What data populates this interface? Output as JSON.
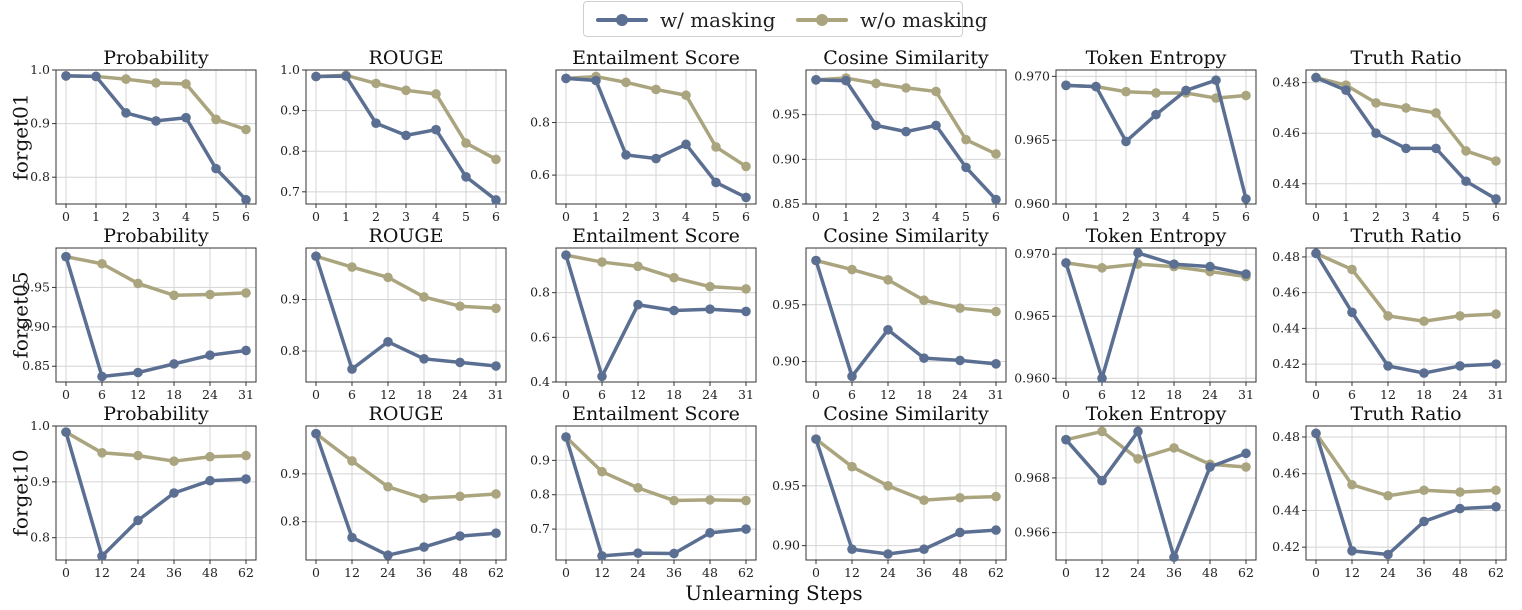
{
  "legend": {
    "masking_label": "w/ masking",
    "no_masking_label": "w/o masking"
  },
  "colors": {
    "w_masking": "#5b6f92",
    "wo_masking": "#aaa57e",
    "grid": "#d4d4d4",
    "axis": "#333333"
  },
  "x_axis_label": "Unlearning Steps",
  "chart_data": [
    {
      "type": "line",
      "row": "forget01",
      "title": "Probability",
      "categories": [
        "0",
        "1",
        "2",
        "3",
        "4",
        "5",
        "6"
      ],
      "ylim": [
        0.75,
        1.0
      ],
      "yticks": [
        0.8,
        0.9,
        1.0
      ],
      "ytick_labels": [
        "0.8",
        "0.9",
        "1.0"
      ],
      "series": [
        {
          "name": "w/ masking",
          "values": [
            0.989,
            0.988,
            0.92,
            0.905,
            0.911,
            0.816,
            0.758
          ]
        },
        {
          "name": "w/o masking",
          "values": [
            0.989,
            0.988,
            0.983,
            0.976,
            0.974,
            0.908,
            0.889
          ]
        }
      ]
    },
    {
      "type": "line",
      "row": "forget01",
      "title": "ROUGE",
      "categories": [
        "0",
        "1",
        "2",
        "3",
        "4",
        "5",
        "6"
      ],
      "ylim": [
        0.67,
        1.0
      ],
      "yticks": [
        0.7,
        0.8,
        0.9,
        1.0
      ],
      "ytick_labels": [
        "0.7",
        "0.8",
        "0.9",
        "1.0"
      ],
      "series": [
        {
          "name": "w/ masking",
          "values": [
            0.984,
            0.985,
            0.869,
            0.839,
            0.853,
            0.737,
            0.68
          ]
        },
        {
          "name": "w/o masking",
          "values": [
            0.984,
            0.987,
            0.967,
            0.95,
            0.941,
            0.82,
            0.78
          ]
        }
      ]
    },
    {
      "type": "line",
      "row": "forget01",
      "title": "Entailment Score",
      "categories": [
        "0",
        "1",
        "2",
        "3",
        "4",
        "5",
        "6"
      ],
      "ylim": [
        0.49,
        1.0
      ],
      "yticks": [
        0.6,
        0.8
      ],
      "ytick_labels": [
        "0.6",
        "0.8"
      ],
      "series": [
        {
          "name": "w/ masking",
          "values": [
            0.968,
            0.96,
            0.677,
            0.663,
            0.717,
            0.572,
            0.515
          ]
        },
        {
          "name": "w/o masking",
          "values": [
            0.968,
            0.975,
            0.953,
            0.926,
            0.904,
            0.707,
            0.633
          ]
        }
      ]
    },
    {
      "type": "line",
      "row": "forget01",
      "title": "Cosine Similarity",
      "categories": [
        "0",
        "1",
        "2",
        "3",
        "4",
        "5",
        "6"
      ],
      "ylim": [
        0.85,
        1.0
      ],
      "yticks": [
        0.85,
        0.9,
        0.95
      ],
      "ytick_labels": [
        "0.85",
        "0.90",
        "0.95"
      ],
      "series": [
        {
          "name": "w/ masking",
          "values": [
            0.989,
            0.988,
            0.938,
            0.931,
            0.938,
            0.891,
            0.855
          ]
        },
        {
          "name": "w/o masking",
          "values": [
            0.989,
            0.991,
            0.985,
            0.98,
            0.976,
            0.922,
            0.906
          ]
        }
      ]
    },
    {
      "type": "line",
      "row": "forget01",
      "title": "Token Entropy",
      "categories": [
        "0",
        "1",
        "2",
        "3",
        "4",
        "5",
        "6"
      ],
      "ylim": [
        0.96,
        0.9705
      ],
      "yticks": [
        0.96,
        0.965,
        0.97
      ],
      "ytick_labels": [
        "0.960",
        "0.965",
        "0.970"
      ],
      "series": [
        {
          "name": "w/ masking",
          "values": [
            0.9693,
            0.9692,
            0.9649,
            0.967,
            0.9689,
            0.9697,
            0.9604
          ]
        },
        {
          "name": "w/o masking",
          "values": [
            0.9693,
            0.9692,
            0.9688,
            0.9687,
            0.9687,
            0.9683,
            0.9685
          ]
        }
      ]
    },
    {
      "type": "line",
      "row": "forget01",
      "title": "Truth Ratio",
      "categories": [
        "0",
        "1",
        "2",
        "3",
        "4",
        "5",
        "6"
      ],
      "ylim": [
        0.432,
        0.485
      ],
      "yticks": [
        0.44,
        0.46,
        0.48
      ],
      "ytick_labels": [
        "0.44",
        "0.46",
        "0.48"
      ],
      "series": [
        {
          "name": "w/ masking",
          "values": [
            0.482,
            0.477,
            0.46,
            0.454,
            0.454,
            0.441,
            0.434
          ]
        },
        {
          "name": "w/o masking",
          "values": [
            0.482,
            0.479,
            0.472,
            0.47,
            0.468,
            0.453,
            0.449
          ]
        }
      ]
    },
    {
      "type": "line",
      "row": "forget05",
      "title": "Probability",
      "categories": [
        "0",
        "6",
        "12",
        "18",
        "24",
        "31"
      ],
      "ylim": [
        0.83,
        1.0
      ],
      "yticks": [
        0.85,
        0.9,
        0.95
      ],
      "ytick_labels": [
        "0.85",
        "0.90",
        "0.95"
      ],
      "series": [
        {
          "name": "w/ masking",
          "values": [
            0.989,
            0.837,
            0.842,
            0.853,
            0.864,
            0.87
          ]
        },
        {
          "name": "w/o masking",
          "values": [
            0.989,
            0.98,
            0.955,
            0.94,
            0.941,
            0.943
          ]
        }
      ]
    },
    {
      "type": "line",
      "row": "forget05",
      "title": "ROUGE",
      "categories": [
        "0",
        "6",
        "12",
        "18",
        "24",
        "31"
      ],
      "ylim": [
        0.74,
        1.0
      ],
      "yticks": [
        0.8,
        0.9
      ],
      "ytick_labels": [
        "0.8",
        "0.9"
      ],
      "series": [
        {
          "name": "w/ masking",
          "values": [
            0.984,
            0.765,
            0.818,
            0.785,
            0.778,
            0.771
          ]
        },
        {
          "name": "w/o masking",
          "values": [
            0.984,
            0.963,
            0.943,
            0.905,
            0.887,
            0.883
          ]
        }
      ]
    },
    {
      "type": "line",
      "row": "forget05",
      "title": "Entailment Score",
      "categories": [
        "0",
        "6",
        "12",
        "18",
        "24",
        "31"
      ],
      "ylim": [
        0.4,
        1.0
      ],
      "yticks": [
        0.4,
        0.6,
        0.8
      ],
      "ytick_labels": [
        "0.4",
        "0.6",
        "0.8"
      ],
      "series": [
        {
          "name": "w/ masking",
          "values": [
            0.968,
            0.425,
            0.746,
            0.72,
            0.726,
            0.716
          ]
        },
        {
          "name": "w/o masking",
          "values": [
            0.968,
            0.937,
            0.918,
            0.867,
            0.827,
            0.817
          ]
        }
      ]
    },
    {
      "type": "line",
      "row": "forget05",
      "title": "Cosine Similarity",
      "categories": [
        "0",
        "6",
        "12",
        "18",
        "24",
        "31"
      ],
      "ylim": [
        0.882,
        1.0
      ],
      "yticks": [
        0.9,
        0.95
      ],
      "ytick_labels": [
        "0.90",
        "0.95"
      ],
      "series": [
        {
          "name": "w/ masking",
          "values": [
            0.989,
            0.887,
            0.928,
            0.903,
            0.901,
            0.898
          ]
        },
        {
          "name": "w/o masking",
          "values": [
            0.989,
            0.981,
            0.972,
            0.954,
            0.947,
            0.944
          ]
        }
      ]
    },
    {
      "type": "line",
      "row": "forget05",
      "title": "Token Entropy",
      "categories": [
        "0",
        "6",
        "12",
        "18",
        "24",
        "31"
      ],
      "ylim": [
        0.9597,
        0.9705
      ],
      "yticks": [
        0.96,
        0.965,
        0.97
      ],
      "ytick_labels": [
        "0.960",
        "0.965",
        "0.970"
      ],
      "series": [
        {
          "name": "w/ masking",
          "values": [
            0.9693,
            0.96,
            0.9701,
            0.9692,
            0.969,
            0.9684
          ]
        },
        {
          "name": "w/o masking",
          "values": [
            0.9693,
            0.9689,
            0.9692,
            0.969,
            0.9686,
            0.9682
          ]
        }
      ]
    },
    {
      "type": "line",
      "row": "forget05",
      "title": "Truth Ratio",
      "categories": [
        "0",
        "6",
        "12",
        "18",
        "24",
        "31"
      ],
      "ylim": [
        0.41,
        0.485
      ],
      "yticks": [
        0.42,
        0.44,
        0.46,
        0.48
      ],
      "ytick_labels": [
        "0.42",
        "0.44",
        "0.46",
        "0.48"
      ],
      "series": [
        {
          "name": "w/ masking",
          "values": [
            0.482,
            0.449,
            0.419,
            0.415,
            0.419,
            0.42
          ]
        },
        {
          "name": "w/o masking",
          "values": [
            0.482,
            0.473,
            0.447,
            0.444,
            0.447,
            0.448
          ]
        }
      ]
    },
    {
      "type": "line",
      "row": "forget10",
      "title": "Probability",
      "categories": [
        "0",
        "12",
        "24",
        "36",
        "48",
        "62"
      ],
      "ylim": [
        0.76,
        1.0
      ],
      "yticks": [
        0.8,
        0.9,
        1.0
      ],
      "ytick_labels": [
        "0.8",
        "0.9",
        "1.0"
      ],
      "series": [
        {
          "name": "w/ masking",
          "values": [
            0.989,
            0.767,
            0.831,
            0.88,
            0.902,
            0.905
          ]
        },
        {
          "name": "w/o masking",
          "values": [
            0.989,
            0.952,
            0.947,
            0.937,
            0.945,
            0.947
          ]
        }
      ]
    },
    {
      "type": "line",
      "row": "forget10",
      "title": "ROUGE",
      "categories": [
        "0",
        "12",
        "24",
        "36",
        "48",
        "62"
      ],
      "ylim": [
        0.72,
        1.0
      ],
      "yticks": [
        0.8,
        0.9
      ],
      "ytick_labels": [
        "0.8",
        "0.9"
      ],
      "series": [
        {
          "name": "w/ masking",
          "values": [
            0.984,
            0.767,
            0.73,
            0.747,
            0.77,
            0.776
          ]
        },
        {
          "name": "w/o masking",
          "values": [
            0.984,
            0.927,
            0.873,
            0.849,
            0.853,
            0.858
          ]
        }
      ]
    },
    {
      "type": "line",
      "row": "forget10",
      "title": "Entailment Score",
      "categories": [
        "0",
        "12",
        "24",
        "36",
        "48",
        "62"
      ],
      "ylim": [
        0.61,
        1.0
      ],
      "yticks": [
        0.7,
        0.8,
        0.9
      ],
      "ytick_labels": [
        "0.7",
        "0.8",
        "0.9"
      ],
      "series": [
        {
          "name": "w/ masking",
          "values": [
            0.968,
            0.622,
            0.63,
            0.629,
            0.689,
            0.7
          ]
        },
        {
          "name": "w/o masking",
          "values": [
            0.968,
            0.867,
            0.82,
            0.783,
            0.785,
            0.783
          ]
        }
      ]
    },
    {
      "type": "line",
      "row": "forget10",
      "title": "Cosine Similarity",
      "categories": [
        "0",
        "12",
        "24",
        "36",
        "48",
        "62"
      ],
      "ylim": [
        0.888,
        1.0
      ],
      "yticks": [
        0.9,
        0.95
      ],
      "ytick_labels": [
        "0.90",
        "0.95"
      ],
      "series": [
        {
          "name": "w/ masking",
          "values": [
            0.989,
            0.897,
            0.893,
            0.897,
            0.911,
            0.913
          ]
        },
        {
          "name": "w/o masking",
          "values": [
            0.989,
            0.966,
            0.95,
            0.938,
            0.94,
            0.941
          ]
        }
      ]
    },
    {
      "type": "line",
      "row": "forget10",
      "title": "Token Entropy",
      "categories": [
        "0",
        "12",
        "24",
        "36",
        "48",
        "62"
      ],
      "ylim": [
        0.965,
        0.9699
      ],
      "yticks": [
        0.966,
        0.968
      ],
      "ytick_labels": [
        "0.966",
        "0.968"
      ],
      "series": [
        {
          "name": "w/ masking",
          "values": [
            0.9694,
            0.9679,
            0.9697,
            0.9651,
            0.9684,
            0.9689
          ]
        },
        {
          "name": "w/o masking",
          "values": [
            0.9694,
            0.9697,
            0.9687,
            0.9691,
            0.9685,
            0.9684
          ]
        }
      ]
    },
    {
      "type": "line",
      "row": "forget10",
      "title": "Truth Ratio",
      "categories": [
        "0",
        "12",
        "24",
        "36",
        "48",
        "62"
      ],
      "ylim": [
        0.413,
        0.486
      ],
      "yticks": [
        0.42,
        0.44,
        0.46,
        0.48
      ],
      "ytick_labels": [
        "0.42",
        "0.44",
        "0.46",
        "0.48"
      ],
      "series": [
        {
          "name": "w/ masking",
          "values": [
            0.482,
            0.418,
            0.416,
            0.434,
            0.441,
            0.442
          ]
        },
        {
          "name": "w/o masking",
          "values": [
            0.482,
            0.454,
            0.448,
            0.451,
            0.45,
            0.451
          ]
        }
      ]
    }
  ]
}
